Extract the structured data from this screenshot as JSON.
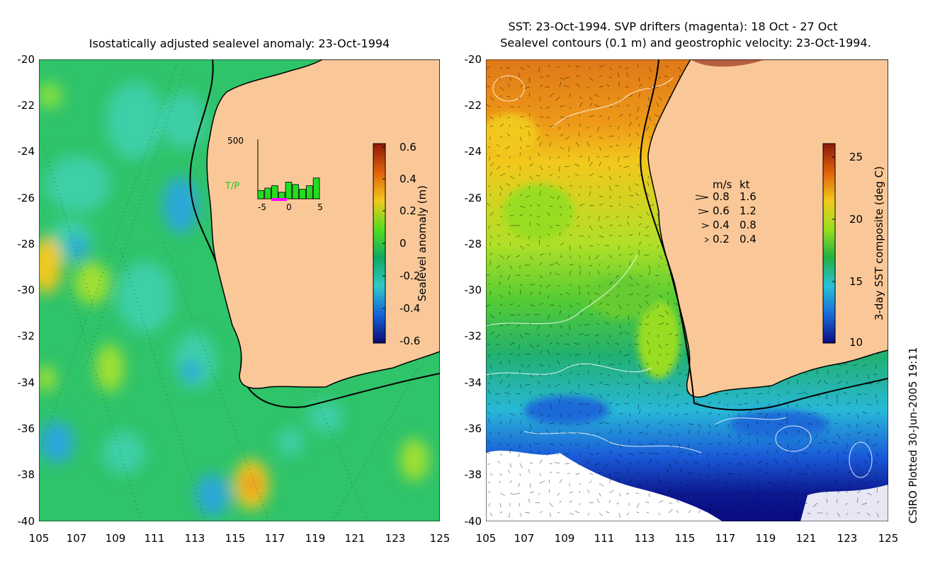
{
  "left_panel": {
    "title": "Isostatically adjusted sealevel anomaly: 23-Oct-1994",
    "colorbar": {
      "label": "Sealevel anomaly (m)",
      "ticks": [
        "0.6",
        "0.4",
        "0.2",
        "0",
        "-0.2",
        "-0.4",
        "-0.6"
      ],
      "colors": [
        "#8a1a0a",
        "#e0600a",
        "#f2c81c",
        "#55dd22",
        "#0fa860",
        "#30c8c8",
        "#1464d8",
        "#0a0a70"
      ]
    },
    "inset": {
      "ymax_label": "500",
      "series_label": "T/P",
      "x_labels": [
        "-5",
        "0",
        "5"
      ],
      "bars": [
        70,
        90,
        110,
        55,
        140,
        120,
        80,
        110,
        175
      ],
      "bar_color": "#22dd22",
      "drifter_color": "#ff00ff"
    }
  },
  "right_panel": {
    "title_line1": "SST: 23-Oct-1994. SVP drifters (magenta): 18 Oct - 27 Oct",
    "title_line2": "Sealevel contours (0.1 m) and geostrophic velocity: 23-Oct-1994.",
    "colorbar": {
      "label": "3-day SST composite (deg C)",
      "ticks": [
        "25",
        "20",
        "15",
        "10"
      ],
      "colors": [
        "#8a1a0a",
        "#e0600a",
        "#f2c81c",
        "#99e020",
        "#22b040",
        "#28c0d8",
        "#1a6ad8",
        "#0a0a80"
      ]
    },
    "velocity_key": {
      "header_ms": "m/s",
      "header_kt": "kt",
      "rows": [
        {
          "ms": "0.8",
          "kt": "1.6"
        },
        {
          "ms": "0.6",
          "kt": "1.2"
        },
        {
          "ms": "0.4",
          "kt": "0.8"
        },
        {
          "ms": "0.2",
          "kt": "0.4"
        }
      ]
    }
  },
  "axes": {
    "lat_labels": [
      "-20",
      "-22",
      "-24",
      "-26",
      "-28",
      "-30",
      "-32",
      "-34",
      "-36",
      "-38",
      "-40"
    ],
    "lon_labels": [
      "105",
      "107",
      "109",
      "111",
      "113",
      "115",
      "117",
      "119",
      "121",
      "123",
      "125"
    ]
  },
  "land_color": "#fac898",
  "credit": "CSIRO Plotted 30-Jun-2005 19:11"
}
